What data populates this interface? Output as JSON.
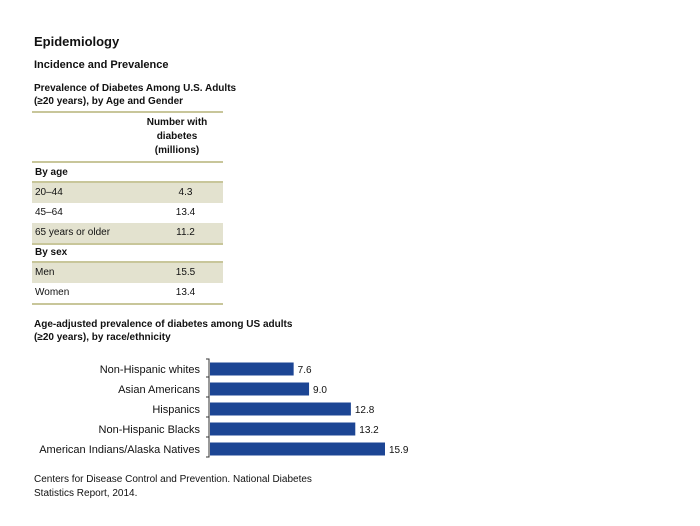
{
  "header": {
    "title": "Epidemiology",
    "section": "Incidence and Prevalence"
  },
  "table": {
    "title_line1": "Prevalence of Diabetes Among U.S. Adults",
    "title_line2": "(≥20 years), by Age and Gender",
    "column_header": [
      "Number with",
      "diabetes",
      "(millions)"
    ],
    "groups": [
      {
        "label": "By age",
        "rows": [
          {
            "label": "20–44",
            "value": "4.3"
          },
          {
            "label": "45–64",
            "value": "13.4"
          },
          {
            "label": "65 years or older",
            "value": "11.2"
          }
        ]
      },
      {
        "label": "By sex",
        "rows": [
          {
            "label": "Men",
            "value": "15.5"
          },
          {
            "label": "Women",
            "value": "13.4"
          }
        ]
      }
    ]
  },
  "chart_data": {
    "type": "bar",
    "orientation": "horizontal",
    "title_line1": "Age-adjusted prevalence of diabetes among US adults",
    "title_line2": "(≥20 years), by race/ethnicity",
    "categories": [
      "Non-Hispanic whites",
      "Asian Americans",
      "Hispanics",
      "Non-Hispanic Blacks",
      "American Indians/Alaska Natives"
    ],
    "values": [
      7.6,
      9.0,
      12.8,
      13.2,
      15.9
    ],
    "value_labels": [
      "7.6",
      "9.0",
      "12.8",
      "13.2",
      "15.9"
    ],
    "bar_color": "#1c4594",
    "xlim": [
      0,
      15.9
    ],
    "grid": false
  },
  "source": {
    "line1": "Centers for Disease Control and Prevention. National Diabetes",
    "line2": "Statistics Report, 2014."
  }
}
